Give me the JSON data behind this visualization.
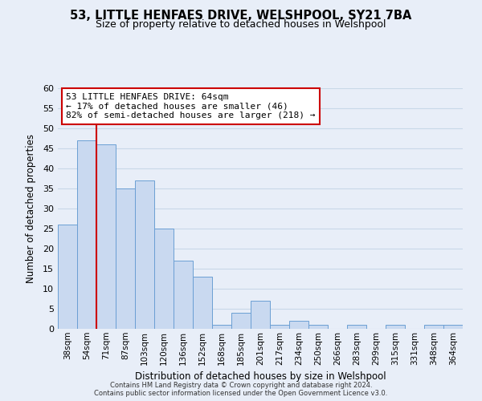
{
  "title": "53, LITTLE HENFAES DRIVE, WELSHPOOL, SY21 7BA",
  "subtitle": "Size of property relative to detached houses in Welshpool",
  "xlabel": "Distribution of detached houses by size in Welshpool",
  "ylabel": "Number of detached properties",
  "bin_labels": [
    "38sqm",
    "54sqm",
    "71sqm",
    "87sqm",
    "103sqm",
    "120sqm",
    "136sqm",
    "152sqm",
    "168sqm",
    "185sqm",
    "201sqm",
    "217sqm",
    "234sqm",
    "250sqm",
    "266sqm",
    "283sqm",
    "299sqm",
    "315sqm",
    "331sqm",
    "348sqm",
    "364sqm"
  ],
  "bar_heights": [
    26,
    47,
    46,
    35,
    37,
    25,
    17,
    13,
    1,
    4,
    7,
    1,
    2,
    1,
    0,
    1,
    0,
    1,
    0,
    1,
    1
  ],
  "bar_color": "#c9d9f0",
  "bar_edge_color": "#6b9fd4",
  "ylim": [
    0,
    60
  ],
  "yticks": [
    0,
    5,
    10,
    15,
    20,
    25,
    30,
    35,
    40,
    45,
    50,
    55,
    60
  ],
  "vline_x": 1.5,
  "annotation_title": "53 LITTLE HENFAES DRIVE: 64sqm",
  "annotation_line1": "← 17% of detached houses are smaller (46)",
  "annotation_line2": "82% of semi-detached houses are larger (218) →",
  "vline_color": "#cc0000",
  "grid_color": "#c8d8e8",
  "background_color": "#e8eef8",
  "footnote1": "Contains HM Land Registry data © Crown copyright and database right 2024.",
  "footnote2": "Contains public sector information licensed under the Open Government Licence v3.0."
}
